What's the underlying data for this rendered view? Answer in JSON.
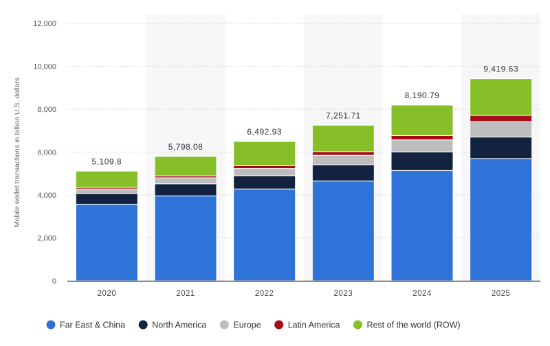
{
  "chart_data": {
    "type": "bar",
    "stacked": true,
    "ylabel": "Mobile wallet transactions in billion U.S. dollars",
    "ylim": [
      0,
      12000
    ],
    "yticks": [
      "0",
      "2,000",
      "4,000",
      "6,000",
      "8,000",
      "10,000",
      "12,000"
    ],
    "ytick_values": [
      0,
      2000,
      4000,
      6000,
      8000,
      10000,
      12000
    ],
    "grid": true,
    "legend_position": "bottom",
    "categories": [
      "2020",
      "2021",
      "2022",
      "2023",
      "2024",
      "2025"
    ],
    "totals": [
      "5,109.8",
      "5,798.08",
      "6,492.93",
      "7,251.71",
      "8,190.79",
      "9,419.63"
    ],
    "series": [
      {
        "name": "Far East & China",
        "color": "#2f73d9",
        "values": [
          3570,
          3960,
          4280,
          4650,
          5140,
          5700
        ]
      },
      {
        "name": "North America",
        "color": "#13233f",
        "values": [
          500,
          560,
          620,
          760,
          870,
          1000
        ]
      },
      {
        "name": "Europe",
        "color": "#bdbdbd",
        "values": [
          210,
          280,
          330,
          440,
          560,
          720
        ]
      },
      {
        "name": "Latin America",
        "color": "#a50c17",
        "values": [
          70,
          90,
          130,
          170,
          200,
          290
        ]
      },
      {
        "name": "Rest of the world (ROW)",
        "color": "#86bf27",
        "values": [
          760,
          908.08,
          1132.93,
          1231.71,
          1420.79,
          1709.63
        ]
      }
    ]
  }
}
